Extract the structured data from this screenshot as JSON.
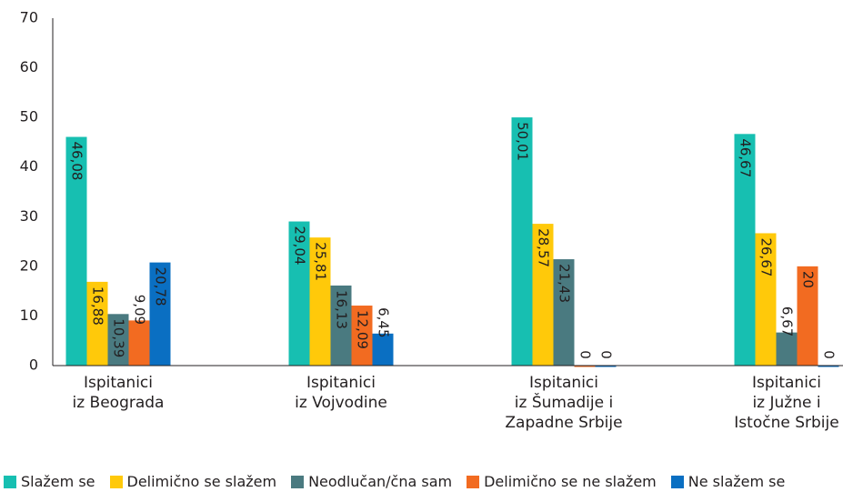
{
  "chart_data": {
    "type": "bar",
    "categories": [
      "Ispitanici\niz Beograda",
      "Ispitanici\niz Vojvodine",
      "Ispitanici\niz Šumadije i\nZapadne Srbije",
      "Ispitanici\niz Južne i\nIstočne Srbije"
    ],
    "series": [
      {
        "name": "Slažem se",
        "color": "#17bfb1",
        "values": [
          46.08,
          29.04,
          50.01,
          46.67
        ],
        "value_labels": [
          "46,08",
          "29,04",
          "50,01",
          "46,67"
        ]
      },
      {
        "name": "Delimično se slažem",
        "color": "#ffc90a",
        "values": [
          16.88,
          25.81,
          28.57,
          26.67
        ],
        "value_labels": [
          "16,88",
          "25,81",
          "28,57",
          "26,67"
        ]
      },
      {
        "name": "Neodlučan/čna sam",
        "color": "#4a7a80",
        "values": [
          10.39,
          16.13,
          21.43,
          6.67
        ],
        "value_labels": [
          "10,39",
          "16,13",
          "21,43",
          "6,67"
        ]
      },
      {
        "name": "Delimično se ne slažem",
        "color": "#f26b21",
        "values": [
          9.09,
          12.09,
          0,
          20
        ],
        "value_labels": [
          "9,09",
          "12,09",
          "0",
          "20"
        ]
      },
      {
        "name": "Ne slažem se",
        "color": "#0a6fc2",
        "values": [
          20.78,
          6.45,
          0,
          0
        ],
        "value_labels": [
          "20,78",
          "6,45",
          "0",
          "0"
        ]
      }
    ],
    "ylim": [
      0,
      70
    ],
    "yticks": [
      0,
      10,
      20,
      30,
      40,
      50,
      60,
      70
    ],
    "grid": false,
    "legend": "bottom"
  }
}
